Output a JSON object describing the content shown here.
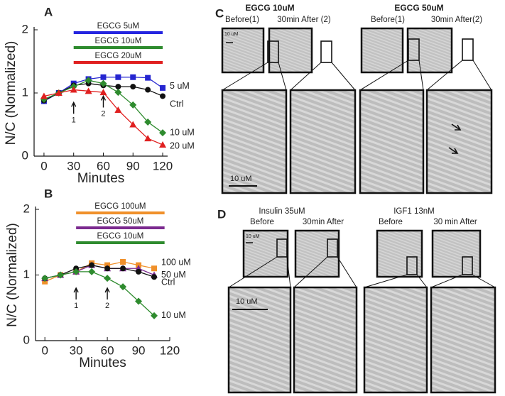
{
  "chart_data": [
    {
      "type": "line",
      "label": "A",
      "ylabel": "N/C (Normalized)",
      "xlabel": "Minutes",
      "xlim": [
        -10,
        125
      ],
      "ylim": [
        0,
        2
      ],
      "xticks": [
        0,
        30,
        60,
        90,
        120
      ],
      "yticks": [
        0,
        1,
        2
      ],
      "x": [
        0,
        15,
        30,
        45,
        60,
        75,
        90,
        105,
        120
      ],
      "series": [
        {
          "name": "5 uM",
          "color": "#2525d0",
          "marker": "square",
          "values": [
            0.87,
            1.0,
            1.15,
            1.22,
            1.25,
            1.25,
            1.25,
            1.24,
            1.08
          ]
        },
        {
          "name": "Ctrl",
          "color": "#111111",
          "marker": "circle",
          "values": [
            0.88,
            1.0,
            1.12,
            1.15,
            1.12,
            1.1,
            1.1,
            1.05,
            0.95
          ]
        },
        {
          "name": "10 uM",
          "color": "#2e8b2e",
          "marker": "diamond",
          "values": [
            0.9,
            1.0,
            1.1,
            1.2,
            1.15,
            1.01,
            0.81,
            0.54,
            0.37
          ]
        },
        {
          "name": "20 uM",
          "color": "#e02020",
          "marker": "triangle",
          "values": [
            0.95,
            1.0,
            1.05,
            1.03,
            1.01,
            0.73,
            0.5,
            0.28,
            0.18
          ]
        }
      ],
      "treatments": [
        {
          "label": "EGCG 5uM",
          "color": "#2525e0",
          "start": 30,
          "end": 120
        },
        {
          "label": "EGCG 10uM",
          "color": "#2e8b2e",
          "start": 30,
          "end": 120
        },
        {
          "label": "EGCG 20uM",
          "color": "#e02020",
          "start": 30,
          "end": 120
        }
      ],
      "arrows": [
        {
          "label": "1",
          "x": 30,
          "y": 0.85
        },
        {
          "label": "2",
          "x": 60,
          "y": 0.95
        }
      ]
    },
    {
      "type": "line",
      "label": "B",
      "ylabel": "N/C (Normalized)",
      "xlabel": "Minutes",
      "xlim": [
        -9,
        120
      ],
      "ylim": [
        0,
        2
      ],
      "xticks": [
        0,
        30,
        60,
        90,
        120
      ],
      "yticks": [
        0,
        1,
        2
      ],
      "x": [
        0,
        15,
        30,
        45,
        60,
        75,
        90,
        105
      ],
      "series": [
        {
          "name": "100 uM",
          "color": "#f0902a",
          "marker": "square",
          "values": [
            0.9,
            1.0,
            1.05,
            1.18,
            1.15,
            1.2,
            1.15,
            1.1
          ]
        },
        {
          "name": "50 uM",
          "color": "#7b2a8f",
          "marker": "triangle",
          "values": [
            0.95,
            1.0,
            1.05,
            1.15,
            1.1,
            1.1,
            1.1,
            1.0
          ]
        },
        {
          "name": "Ctrl",
          "color": "#111111",
          "marker": "circle",
          "values": [
            0.95,
            1.0,
            1.1,
            1.15,
            1.1,
            1.1,
            1.05,
            0.97
          ]
        },
        {
          "name": "10 uM",
          "color": "#2e8b2e",
          "marker": "diamond",
          "values": [
            0.95,
            1.0,
            1.05,
            1.05,
            0.95,
            0.82,
            0.6,
            0.38
          ]
        }
      ],
      "treatments": [
        {
          "label": "EGCG 100uM",
          "color": "#f0902a",
          "start": 30,
          "end": 115
        },
        {
          "label": "EGCG 50uM",
          "color": "#7b2a8f",
          "start": 30,
          "end": 115
        },
        {
          "label": "EGCG 10uM",
          "color": "#2e8b2e",
          "start": 30,
          "end": 115
        }
      ],
      "arrows": [
        {
          "label": "1",
          "x": 30,
          "y": 0.8
        },
        {
          "label": "2",
          "x": 60,
          "y": 0.8
        }
      ]
    }
  ],
  "panels": {
    "C": {
      "label": "C",
      "groups": [
        {
          "title": "EGCG 10uM",
          "color": "#2e9a2e",
          "before": "Before(1)",
          "after": "30min After (2)"
        },
        {
          "title": "EGCG 50uM",
          "color": "#9b2f86",
          "before": "Before(1)",
          "after": "30min After(2)"
        }
      ],
      "scale_small": "10 uM",
      "scale_large": "10 uM"
    },
    "D": {
      "label": "D",
      "groups": [
        {
          "title": "Insulin 35uM",
          "before": "Before",
          "after": "30min After"
        },
        {
          "title": "IGF1 13nM",
          "before": "Before",
          "after": "30 min After"
        }
      ],
      "scale_small": "10 uM",
      "scale_large": "10 uM"
    }
  }
}
